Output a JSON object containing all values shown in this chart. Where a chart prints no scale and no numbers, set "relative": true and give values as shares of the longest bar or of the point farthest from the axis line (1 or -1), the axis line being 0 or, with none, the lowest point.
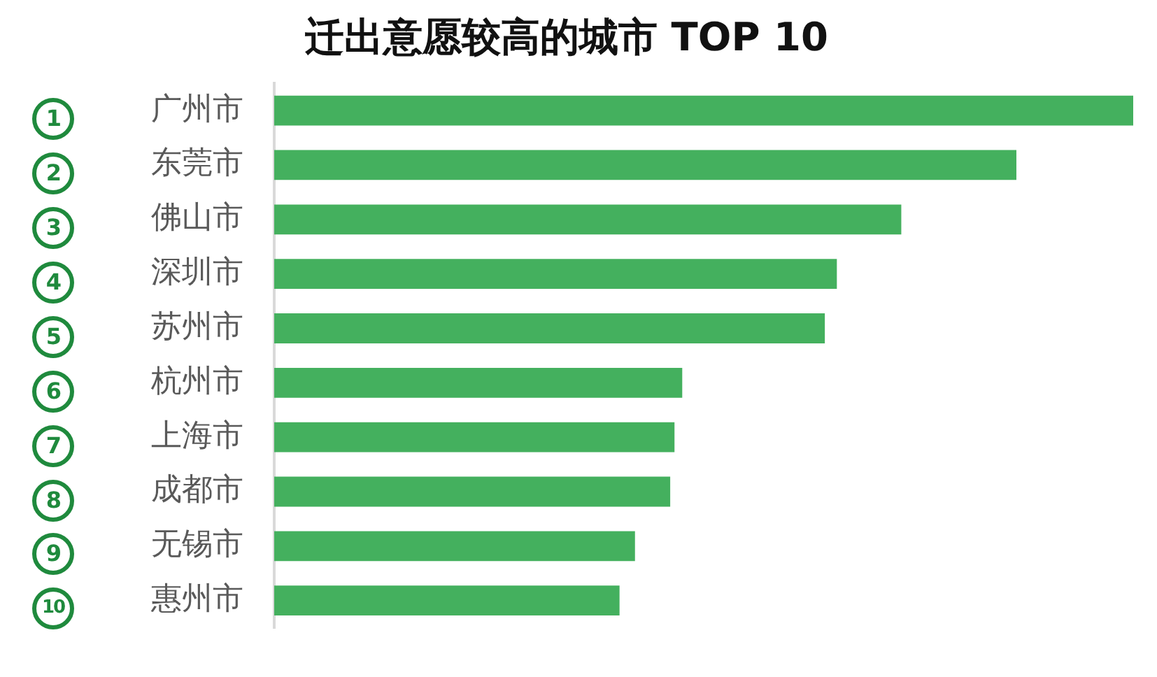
{
  "chart_data": {
    "type": "bar",
    "orientation": "horizontal",
    "relative": true,
    "title": "迁出意愿较高的城市 TOP 10",
    "categories": [
      "广州市",
      "东莞市",
      "佛山市",
      "深圳市",
      "苏州市",
      "杭州市",
      "上海市",
      "成都市",
      "无锡市",
      "惠州市"
    ],
    "values": [
      1,
      0.864,
      0.73,
      0.655,
      0.641,
      0.475,
      0.466,
      0.461,
      0.42,
      0.402
    ],
    "color": "#44b05e",
    "annotations": [
      "1",
      "2",
      "3",
      "4",
      "5",
      "6",
      "7",
      "8",
      "9",
      "10"
    ]
  }
}
